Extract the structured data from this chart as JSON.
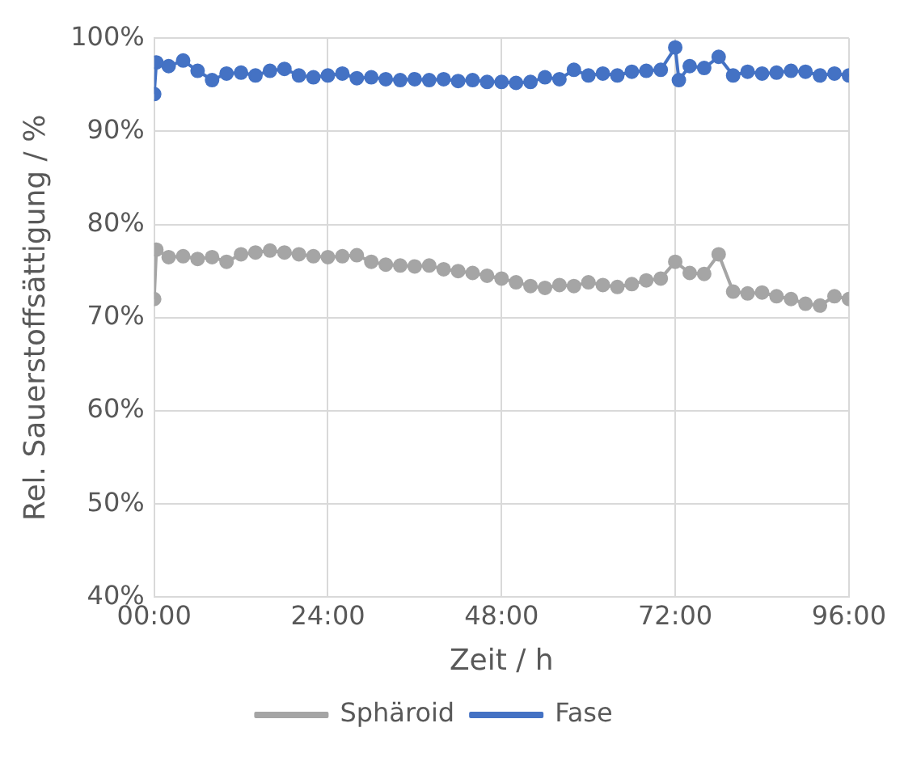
{
  "chart_data": {
    "type": "line",
    "xlabel": "Zeit / h",
    "ylabel": "Rel. Sauerstoffsättigung / %",
    "xlim": [
      0,
      96
    ],
    "xticks": [
      {
        "value": 0,
        "label": "00:00"
      },
      {
        "value": 24,
        "label": "24:00"
      },
      {
        "value": 48,
        "label": "48:00"
      },
      {
        "value": 72,
        "label": "72:00"
      },
      {
        "value": 96,
        "label": "96:00"
      }
    ],
    "ylim": [
      40,
      100
    ],
    "yticks": [
      {
        "value": 40,
        "label": "40%"
      },
      {
        "value": 50,
        "label": "50%"
      },
      {
        "value": 60,
        "label": "60%"
      },
      {
        "value": 70,
        "label": "70%"
      },
      {
        "value": 80,
        "label": "80%"
      },
      {
        "value": 90,
        "label": "90%"
      },
      {
        "value": 100,
        "label": "100%"
      }
    ],
    "grid": true,
    "legend": "bottom",
    "marker": "circle",
    "series": [
      {
        "name": "Sphäroid",
        "color": "#a5a5a5",
        "x": [
          0,
          0.3,
          2,
          4,
          6,
          8,
          10,
          12,
          14,
          16,
          18,
          20,
          22,
          24,
          26,
          28,
          30,
          32,
          34,
          36,
          38,
          40,
          42,
          44,
          46,
          48,
          50,
          52,
          54,
          56,
          58,
          60,
          62,
          64,
          66,
          68,
          70,
          72,
          74,
          76,
          78,
          80,
          82,
          84,
          86,
          88,
          90,
          92,
          94,
          96
        ],
        "values": [
          72,
          77.3,
          76.5,
          76.6,
          76.3,
          76.5,
          76,
          76.8,
          77,
          77.2,
          77,
          76.8,
          76.6,
          76.5,
          76.6,
          76.7,
          76,
          75.7,
          75.6,
          75.5,
          75.6,
          75.2,
          75,
          74.8,
          74.5,
          74.2,
          73.8,
          73.4,
          73.2,
          73.5,
          73.4,
          73.8,
          73.5,
          73.3,
          73.6,
          74,
          74.2,
          76,
          74.8,
          74.7,
          76.8,
          72.8,
          72.6,
          72.7,
          72.3,
          72,
          71.5,
          71.3,
          72.3,
          72
        ]
      },
      {
        "name": "Fase",
        "color": "#4472c4",
        "x": [
          0,
          0.3,
          2,
          4,
          6,
          8,
          10,
          12,
          14,
          16,
          18,
          20,
          22,
          24,
          26,
          28,
          30,
          32,
          34,
          36,
          38,
          40,
          42,
          44,
          46,
          48,
          50,
          52,
          54,
          56,
          58,
          60,
          62,
          64,
          66,
          68,
          70,
          72,
          72.5,
          74,
          76,
          78,
          80,
          82,
          84,
          86,
          88,
          90,
          92,
          94,
          96
        ],
        "values": [
          94,
          97.4,
          97,
          97.6,
          96.5,
          95.5,
          96.2,
          96.3,
          96,
          96.5,
          96.7,
          96,
          95.8,
          96,
          96.2,
          95.7,
          95.8,
          95.6,
          95.5,
          95.6,
          95.5,
          95.6,
          95.4,
          95.5,
          95.3,
          95.3,
          95.2,
          95.3,
          95.8,
          95.6,
          96.6,
          96,
          96.2,
          96,
          96.4,
          96.5,
          96.6,
          99,
          95.5,
          97,
          96.8,
          98,
          96,
          96.4,
          96.2,
          96.3,
          96.5,
          96.4,
          96,
          96.2,
          96
        ]
      }
    ]
  }
}
